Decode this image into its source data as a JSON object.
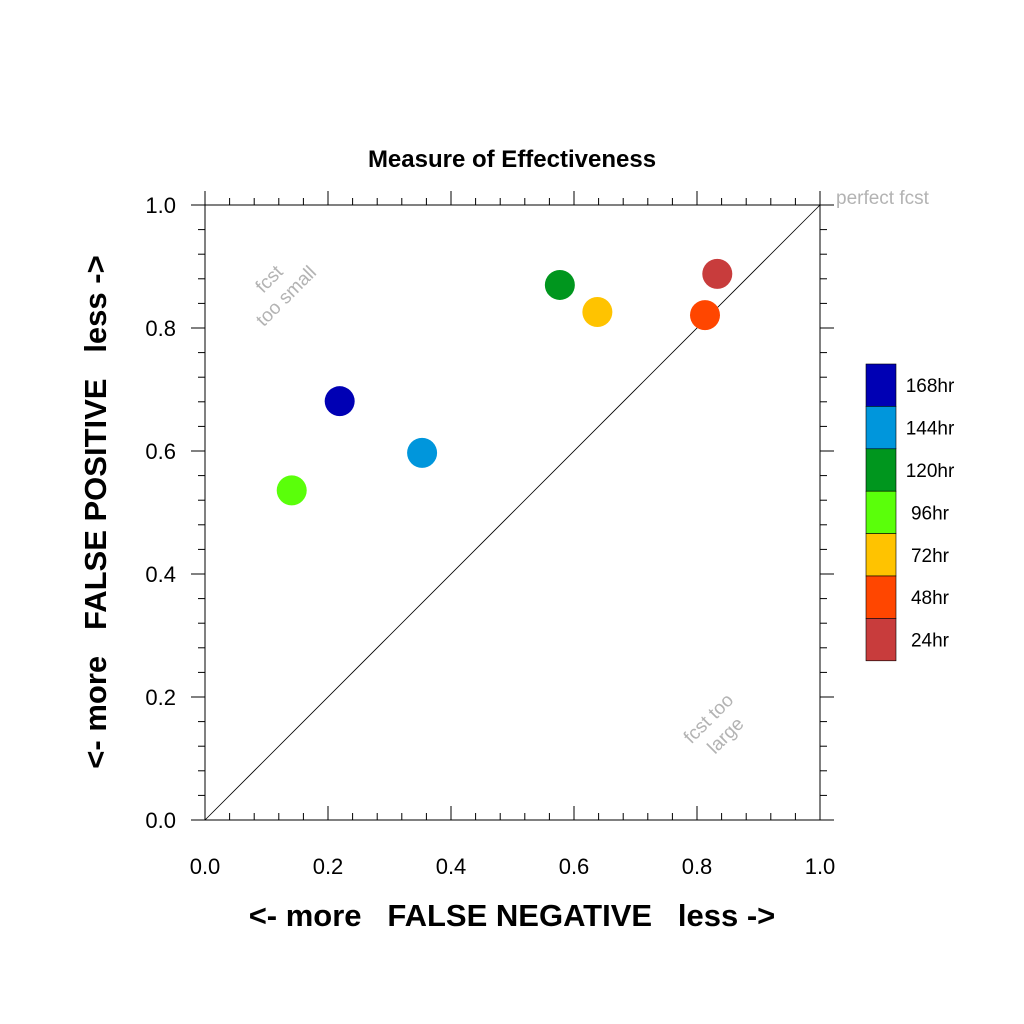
{
  "chart_data": {
    "type": "scatter",
    "title": "Measure of Effectiveness",
    "xlabel": "<- more   FALSE NEGATIVE   less ->",
    "ylabel": "<- more   FALSE POSITIVE   less ->",
    "xlim": [
      0.0,
      1.0
    ],
    "ylim": [
      0.0,
      1.0
    ],
    "xticks": [
      "0.0",
      "0.2",
      "0.4",
      "0.6",
      "0.8",
      "1.0"
    ],
    "yticks": [
      "0.0",
      "0.2",
      "0.4",
      "0.6",
      "0.8",
      "1.0"
    ],
    "grid": false,
    "diagonal_line": true,
    "legend_position": "right",
    "annotations": {
      "perfect": "perfect fcst",
      "too_small_line1": "fcst",
      "too_small_line2": "too small",
      "too_large_line1": "fcst too",
      "too_large_line2": "large"
    },
    "series": [
      {
        "name": "168hr",
        "color": "#0000b4",
        "x": 0.219,
        "y": 0.681
      },
      {
        "name": "144hr",
        "color": "#0096dc",
        "x": 0.353,
        "y": 0.597
      },
      {
        "name": "120hr",
        "color": "#00961e",
        "x": 0.577,
        "y": 0.87
      },
      {
        "name": "96hr",
        "color": "#5aff0a",
        "x": 0.141,
        "y": 0.536
      },
      {
        "name": "72hr",
        "color": "#ffc300",
        "x": 0.638,
        "y": 0.826
      },
      {
        "name": "48hr",
        "color": "#ff4600",
        "x": 0.813,
        "y": 0.821
      },
      {
        "name": "24hr",
        "color": "#c83c3c",
        "x": 0.833,
        "y": 0.888
      }
    ]
  }
}
